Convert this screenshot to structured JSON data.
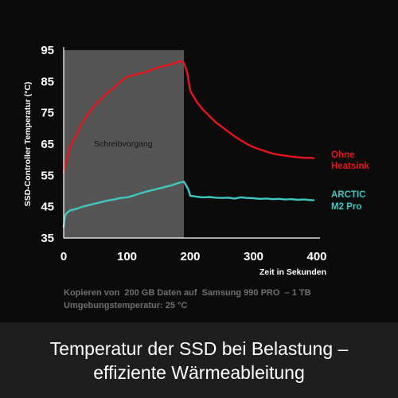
{
  "chart_data": {
    "type": "line",
    "ylabel": "SSD-Controller Temperatur (°C)",
    "xlabel": "Zeit in Sekunden",
    "xlim": [
      0,
      400
    ],
    "ylim": [
      35,
      95
    ],
    "xticks": [
      0,
      100,
      200,
      300,
      400
    ],
    "yticks": [
      35,
      45,
      55,
      65,
      75,
      85,
      95
    ],
    "grid": false,
    "legend_placement": "right",
    "shaded_region": {
      "x": [
        0,
        190
      ],
      "label": "Schreibvorgang",
      "color": "#555555"
    },
    "series": [
      {
        "name": "Ohne Heatsink",
        "color": "#e8141c",
        "x": [
          0,
          5,
          10,
          20,
          30,
          40,
          50,
          60,
          70,
          80,
          90,
          100,
          110,
          120,
          130,
          140,
          150,
          160,
          170,
          180,
          185,
          190,
          195,
          200,
          210,
          220,
          230,
          240,
          250,
          260,
          270,
          280,
          290,
          300,
          310,
          320,
          330,
          340,
          350,
          360,
          370,
          380,
          390,
          395
        ],
        "values": [
          56,
          60,
          64,
          68,
          72,
          75,
          77.5,
          79.5,
          81.5,
          83,
          85,
          86.5,
          87,
          87.5,
          88,
          88.8,
          89.5,
          90,
          90.5,
          91.2,
          91.5,
          91,
          88,
          82,
          78.5,
          76,
          74,
          72,
          70.5,
          69,
          67.5,
          66.2,
          65,
          64,
          63.3,
          62.6,
          62,
          61.6,
          61.3,
          61,
          60.8,
          60.6,
          60.6,
          60.5
        ]
      },
      {
        "name": "ARCTIC M2 Pro",
        "color": "#3fc7c2",
        "x": [
          0,
          2,
          5,
          10,
          20,
          30,
          40,
          50,
          60,
          70,
          80,
          90,
          100,
          110,
          120,
          130,
          140,
          150,
          160,
          170,
          180,
          185,
          190,
          193,
          197,
          200,
          210,
          220,
          230,
          240,
          250,
          260,
          270,
          280,
          290,
          300,
          310,
          320,
          330,
          340,
          350,
          360,
          370,
          380,
          390,
          395
        ],
        "values": [
          38.5,
          42,
          43,
          43.8,
          44.3,
          45,
          45.5,
          46,
          46.5,
          47,
          47.3,
          47.8,
          48,
          48.5,
          49.2,
          49.8,
          50.3,
          50.8,
          51.3,
          51.8,
          52.5,
          52.8,
          53,
          52,
          50.5,
          48.5,
          48.2,
          48,
          48.1,
          47.9,
          47.8,
          47.9,
          47.6,
          48,
          47.8,
          47.7,
          47.5,
          47.6,
          47.4,
          47.5,
          47.3,
          47.4,
          47.2,
          47.3,
          47.1,
          47.1
        ]
      }
    ]
  },
  "notes": {
    "line1": "Kopieren von  200 GB Daten auf  Samsung 990 PRO  – 1 TB",
    "line2": "Umgebungstemperatur: 25 °C"
  },
  "banner": {
    "line1": "Temperatur der SSD bei Belastung –",
    "line2": "effiziente Wärmeableitung"
  },
  "legend": {
    "ohne_line1": "Ohne",
    "ohne_line2": "Heatsink",
    "arctic_line1": "ARCTIC",
    "arctic_line2": "M2 Pro"
  }
}
